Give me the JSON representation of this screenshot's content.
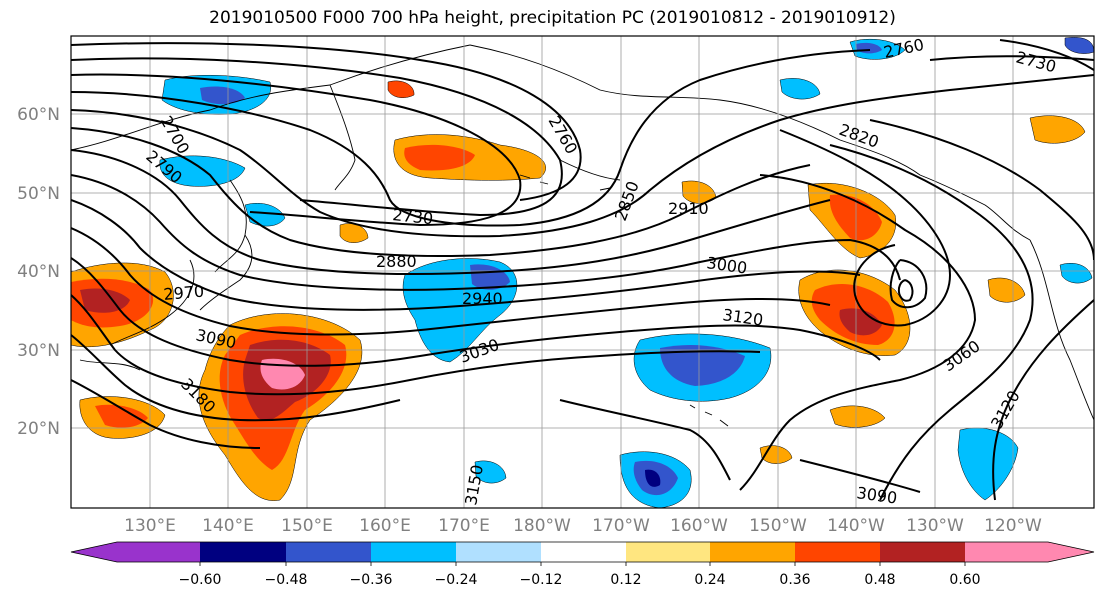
{
  "title": "2019010500 F000 700 hPa height, precipitation PC (2019010812 - 2019010912)",
  "lat_labels": [
    "60°N",
    "50°N",
    "40°N",
    "30°N",
    "20°N"
  ],
  "lon_labels": [
    "130°E",
    "140°E",
    "150°E",
    "160°E",
    "170°E",
    "180°W",
    "170°W",
    "160°W",
    "150°W",
    "140°W",
    "130°W",
    "120°W"
  ],
  "contour_labels": [
    {
      "text": "2700"
    },
    {
      "text": "2790"
    },
    {
      "text": "2760"
    },
    {
      "text": "2730"
    },
    {
      "text": "2880"
    },
    {
      "text": "2850"
    },
    {
      "text": "2910"
    },
    {
      "text": "2820"
    },
    {
      "text": "2760"
    },
    {
      "text": "2730"
    },
    {
      "text": "2970"
    },
    {
      "text": "2940"
    },
    {
      "text": "3000"
    },
    {
      "text": "3090"
    },
    {
      "text": "3030"
    },
    {
      "text": "3120"
    },
    {
      "text": "3180"
    },
    {
      "text": "3060"
    },
    {
      "text": "3120"
    },
    {
      "text": "3090"
    },
    {
      "text": "3150"
    }
  ],
  "colorbar": {
    "ticks": [
      "−0.60",
      "−0.48",
      "−0.36",
      "−0.24",
      "−0.12",
      "0.12",
      "0.24",
      "0.36",
      "0.48",
      "0.60"
    ],
    "colors": [
      "#9933cc",
      "#000080",
      "#3355cc",
      "#00bfff",
      "#b0e0ff",
      "#ffffff",
      "#ffe680",
      "#ffa500",
      "#ff4500",
      "#b22222",
      "#ff88b0"
    ]
  },
  "field_colors": {
    "neg_weak": "#b0e0ff",
    "neg_mid": "#00bfff",
    "neg_strong": "#3355cc",
    "neg_max": "#000080",
    "pos_weak": "#ffe680",
    "pos_mid": "#ffa500",
    "pos_strong": "#ff4500",
    "pos_max": "#b22222",
    "pos_extreme": "#ff88b0"
  }
}
